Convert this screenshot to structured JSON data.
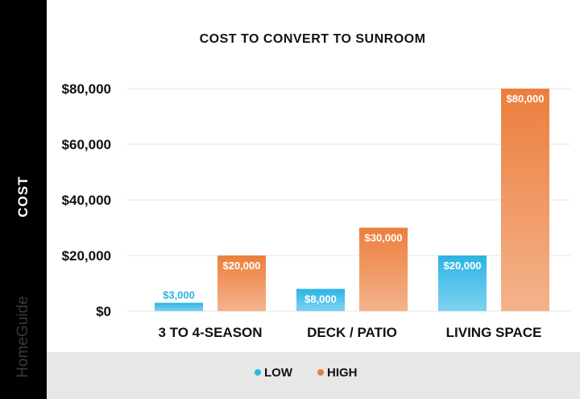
{
  "brand": "HomeGuide",
  "colors": {
    "low": "#2bb4e4",
    "high": "#ec7e3c",
    "sidebar": "#000000",
    "legend_bg": "#e7e7e7"
  },
  "chart_data": {
    "type": "bar",
    "title": "COST TO CONVERT TO SUNROOM",
    "xlabel": "",
    "ylabel": "COST",
    "categories": [
      "3 TO 4-SEASON",
      "DECK / PATIO",
      "LIVING SPACE"
    ],
    "series": [
      {
        "name": "LOW",
        "values": [
          3000,
          8000,
          20000
        ],
        "labels": [
          "$3,000",
          "$8,000",
          "$20,000"
        ]
      },
      {
        "name": "HIGH",
        "values": [
          20000,
          30000,
          80000
        ],
        "labels": [
          "$20,000",
          "$30,000",
          "$80,000"
        ]
      }
    ],
    "ylim": [
      0,
      80000
    ],
    "yticks": [
      0,
      20000,
      40000,
      60000,
      80000
    ],
    "ytick_labels": [
      "$0",
      "$20,000",
      "$40,000",
      "$60,000",
      "$80,000"
    ],
    "grid": true,
    "legend": "bottom"
  }
}
